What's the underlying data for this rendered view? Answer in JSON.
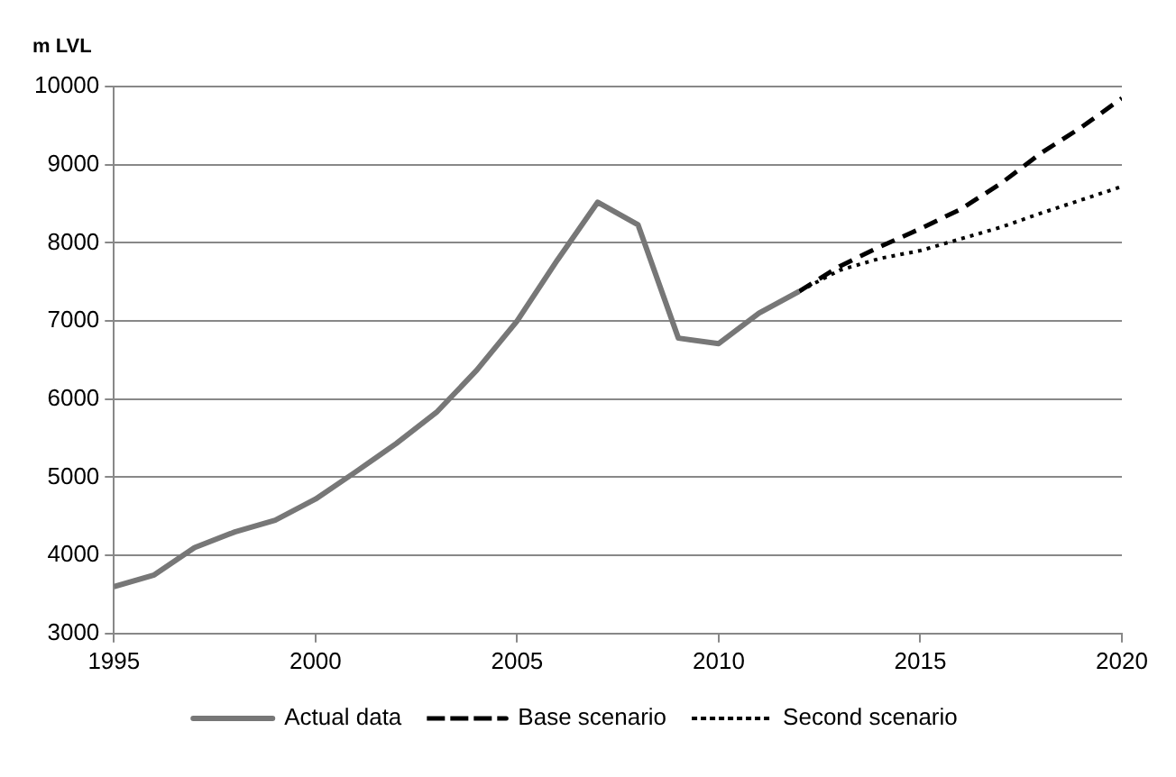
{
  "chart_data": {
    "type": "line",
    "ylabel": "m LVL",
    "xlim": [
      1995,
      2020
    ],
    "xticks": [
      1995,
      2000,
      2005,
      2010,
      2015,
      2020
    ],
    "ylim": [
      3000,
      10000
    ],
    "yticks": [
      3000,
      4000,
      5000,
      6000,
      7000,
      8000,
      9000,
      10000
    ],
    "grid": "y",
    "legend": "bottom",
    "marker": "none",
    "series": [
      {
        "name": "Actual data",
        "color": "#777777",
        "line_style": "solid",
        "x": [
          1995,
          1996,
          1997,
          1998,
          1999,
          2000,
          2001,
          2002,
          2003,
          2004,
          2005,
          2006,
          2007,
          2008,
          2009,
          2010,
          2011,
          2012
        ],
        "values": [
          3600,
          3750,
          4100,
          4300,
          4450,
          4720,
          5070,
          5430,
          5830,
          6370,
          7000,
          7780,
          8520,
          8230,
          6780,
          6710,
          7100,
          7380
        ]
      },
      {
        "name": "Base scenario",
        "color": "#000000",
        "line_style": "dashed",
        "x": [
          2012,
          2013,
          2014,
          2015,
          2016,
          2017,
          2018,
          2019,
          2020
        ],
        "values": [
          7380,
          7700,
          7950,
          8180,
          8430,
          8760,
          9150,
          9480,
          9850
        ]
      },
      {
        "name": "Second scenario",
        "color": "#000000",
        "line_style": "dotted",
        "x": [
          2012,
          2013,
          2014,
          2015,
          2016,
          2017,
          2018,
          2019,
          2020
        ],
        "values": [
          7380,
          7650,
          7800,
          7900,
          8050,
          8200,
          8380,
          8550,
          8720
        ]
      }
    ]
  }
}
